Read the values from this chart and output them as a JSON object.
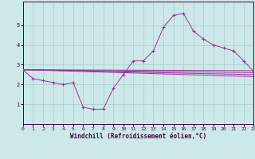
{
  "xlabel": "Windchill (Refroidissement éolien,°C)",
  "xlim": [
    0,
    23
  ],
  "ylim": [
    0,
    6.2
  ],
  "yticks": [
    1,
    2,
    3,
    4,
    5
  ],
  "xticks": [
    0,
    1,
    2,
    3,
    4,
    5,
    6,
    7,
    8,
    9,
    10,
    11,
    12,
    13,
    14,
    15,
    16,
    17,
    18,
    19,
    20,
    21,
    22,
    23
  ],
  "background_color": "#cce8e8",
  "grid_color": "#aacccc",
  "line_color": "#993399",
  "main_x": [
    0,
    1,
    2,
    3,
    4,
    5,
    6,
    7,
    8,
    9,
    10,
    11,
    12,
    13,
    14,
    15,
    16,
    17,
    18,
    19,
    20,
    21,
    22,
    23
  ],
  "main_y": [
    2.75,
    2.3,
    2.2,
    2.1,
    2.0,
    2.1,
    0.85,
    0.75,
    0.75,
    1.8,
    2.5,
    3.2,
    3.2,
    3.7,
    4.9,
    5.5,
    5.6,
    4.7,
    4.3,
    4.0,
    3.85,
    3.7,
    3.2,
    2.65
  ],
  "ref_lines": [
    [
      2.75,
      2.7
    ],
    [
      2.75,
      2.6
    ],
    [
      2.75,
      2.5
    ],
    [
      2.75,
      2.4
    ]
  ]
}
